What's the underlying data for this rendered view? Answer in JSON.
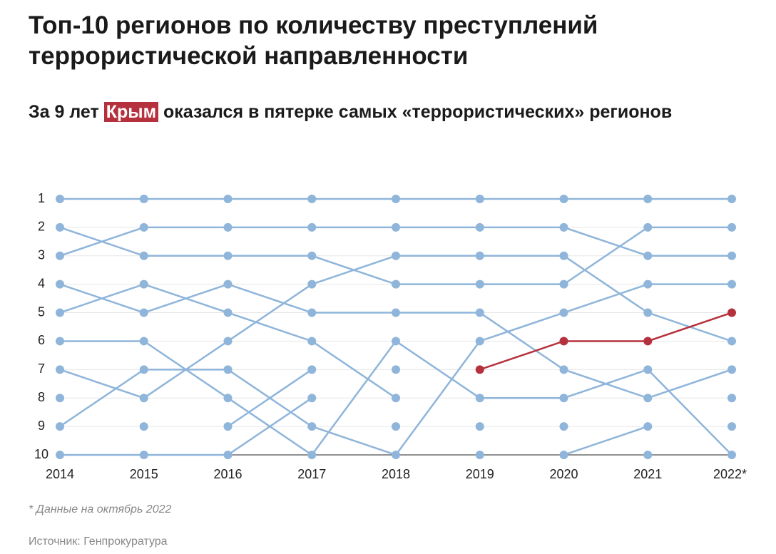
{
  "title": "Топ-10 регионов по количеству преступлений террористической направленности",
  "subtitle": {
    "before": "За 9 лет",
    "highlight": "Крым",
    "after": "оказался в пятерке самых «террористических» регионов"
  },
  "footnote": "* Данные на октябрь 2022",
  "source": "Источник: Генпрокуратура",
  "chart_data": {
    "type": "line",
    "categories": [
      "2014",
      "2015",
      "2016",
      "2017",
      "2018",
      "2019",
      "2020",
      "2021",
      "2022*"
    ],
    "ylim": [
      10,
      1
    ],
    "yticks": [
      1,
      2,
      3,
      4,
      5,
      6,
      7,
      8,
      9,
      10
    ],
    "grid": true,
    "series": [
      {
        "color": "#8fb5da",
        "values": [
          1,
          1,
          1,
          1,
          1,
          1,
          1,
          1,
          1
        ]
      },
      {
        "color": "#8fb5da",
        "values": [
          3,
          2,
          2,
          2,
          2,
          2,
          2,
          3,
          3
        ]
      },
      {
        "color": "#8fb5da",
        "values": [
          2,
          3,
          3,
          3,
          4,
          4,
          4,
          2,
          2
        ]
      },
      {
        "color": "#8fb5da",
        "values": [
          7,
          8,
          6,
          4,
          3,
          3,
          3,
          5,
          6
        ]
      },
      {
        "color": "#8fb5da",
        "values": [
          5,
          4,
          5,
          6,
          8,
          null,
          null,
          null,
          null
        ]
      },
      {
        "color": "#8fb5da",
        "values": [
          4,
          5,
          4,
          5,
          5,
          5,
          7,
          8,
          7
        ]
      },
      {
        "color": "#8fb5da",
        "values": [
          6,
          6,
          8,
          10,
          6,
          8,
          8,
          7,
          10
        ]
      },
      {
        "color": "#8fb5da",
        "values": [
          9,
          7,
          7,
          9,
          10,
          6,
          5,
          4,
          4
        ]
      },
      {
        "color": "#8fb5da",
        "values": [
          10,
          10,
          10,
          8,
          null,
          null,
          null,
          null,
          null
        ]
      },
      {
        "color": "#8fb5da",
        "values": [
          null,
          null,
          9,
          7,
          null,
          null,
          null,
          null,
          null
        ]
      },
      {
        "color": "#8fb5da",
        "values": [
          null,
          null,
          null,
          null,
          null,
          null,
          10,
          9,
          null
        ]
      },
      {
        "color": "#8fb5da",
        "values": [
          8,
          null,
          null,
          null,
          7,
          null,
          9,
          null,
          8
        ]
      },
      {
        "color": "#8fb5da",
        "values": [
          null,
          9,
          null,
          null,
          9,
          null,
          null,
          null,
          9
        ]
      },
      {
        "color": "#8fb5da",
        "values": [
          null,
          null,
          null,
          null,
          null,
          10,
          null,
          10,
          null
        ]
      },
      {
        "color": "#8fb5da",
        "values": [
          null,
          null,
          null,
          null,
          null,
          9,
          null,
          null,
          null
        ]
      },
      {
        "color": "#b5313d",
        "values": [
          null,
          null,
          null,
          null,
          null,
          7,
          6,
          6,
          5
        ]
      }
    ]
  }
}
